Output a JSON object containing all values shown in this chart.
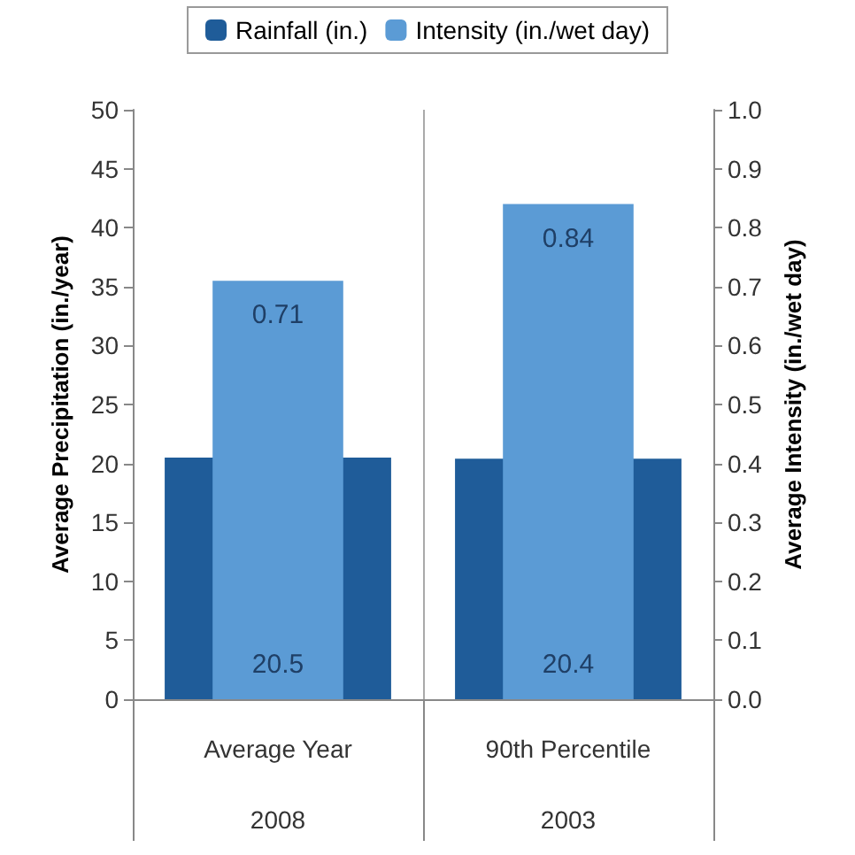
{
  "chart_data": {
    "type": "bar",
    "categories": [
      "Average Year\n2008",
      "90th Percentile\n2003"
    ],
    "ylabel": "Average Precipitation (in./year)",
    "y2label": "Average Intensity (in./wet day)",
    "series": [
      {
        "name": "Rainfall (in.)",
        "color": "#1f5c99",
        "values": [
          20.5,
          20.4
        ]
      },
      {
        "name": "Intensity (in./wet day)",
        "color": "#5b9bd5",
        "values": [
          0.71,
          0.84
        ],
        "axis": "y2"
      }
    ],
    "ylim": [
      0,
      50
    ],
    "yticks": [
      0,
      5,
      10,
      15,
      20,
      25,
      30,
      35,
      40,
      45,
      50
    ],
    "y2lim": [
      0,
      1
    ],
    "y2ticks": [
      {
        "value": 0,
        "label": "0.0"
      },
      0.1,
      0.2,
      0.3,
      0.4,
      0.5,
      0.6,
      0.7,
      0.8,
      0.9,
      {
        "value": 1,
        "label": "1.0"
      }
    ],
    "data_labels": true,
    "legend": "top",
    "grid": "x"
  }
}
